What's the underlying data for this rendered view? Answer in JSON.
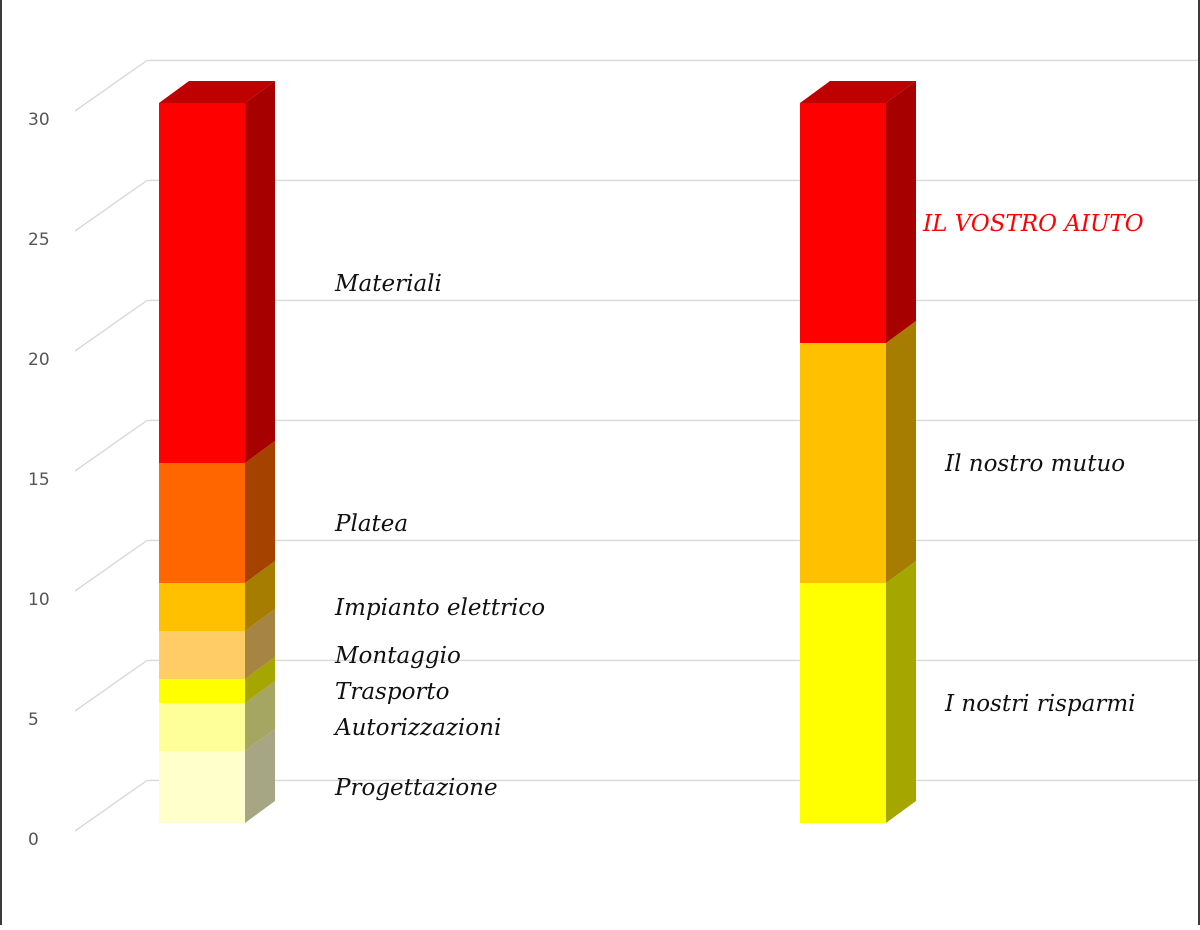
{
  "chart_data": {
    "type": "bar",
    "stacked": true,
    "three_d": true,
    "ylim": [
      0,
      30
    ],
    "yticks": [
      "0",
      "5",
      "10",
      "15",
      "20",
      "25",
      "30"
    ],
    "grid": true,
    "legend": "none",
    "bars": [
      {
        "segments": [
          {
            "label": "Progettazione",
            "value": 3,
            "color": "#FFFFCC"
          },
          {
            "label": "Autorizzazioni",
            "value": 2,
            "color": "#FFFF99"
          },
          {
            "label": "Trasporto",
            "value": 1,
            "color": "#FFFF00"
          },
          {
            "label": "Montaggio",
            "value": 2,
            "color": "#FFCC66"
          },
          {
            "label": "Impianto elettrico",
            "value": 2,
            "color": "#FFC000"
          },
          {
            "label": "Platea",
            "value": 5,
            "color": "#FF6600"
          },
          {
            "label": "Materiali",
            "value": 15,
            "color": "#FF0000"
          }
        ]
      },
      {
        "segments": [
          {
            "label": "I nostri risparmi",
            "value": 10,
            "color": "#FFFF00"
          },
          {
            "label": "Il nostro mutuo",
            "value": 10,
            "color": "#FFC000"
          },
          {
            "label": "IL VOSTRO AIUTO",
            "value": 10,
            "color": "#FF0000",
            "label_color": "#FF0000"
          }
        ]
      }
    ]
  }
}
